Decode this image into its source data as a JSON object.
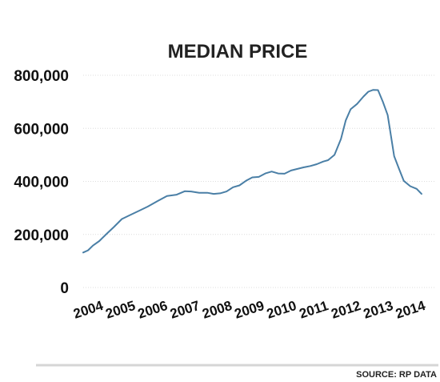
{
  "source": "SOURCE: RP DATA",
  "chart_data": {
    "type": "line",
    "title": "MEDIAN PRICE",
    "xlabel": "",
    "ylabel": "",
    "xlim": [
      2004,
      2014.9
    ],
    "ylim": [
      0,
      800000
    ],
    "y_ticks": [
      0,
      200000,
      400000,
      600000,
      800000
    ],
    "y_tick_labels": [
      "0",
      "200,000",
      "400,000",
      "600,000",
      "800,000"
    ],
    "x_ticks": [
      2004,
      2005,
      2006,
      2007,
      2008,
      2009,
      2010,
      2011,
      2012,
      2013,
      2014
    ],
    "x_tick_labels": [
      "2004",
      "2005",
      "2006",
      "2007",
      "2008",
      "2009",
      "2010",
      "2011",
      "2012",
      "2013",
      "2014"
    ],
    "grid": "horizontal",
    "line_color": "#4a7fa6",
    "series": [
      {
        "name": "",
        "x": [
          2004.0,
          2004.15,
          2004.3,
          2004.5,
          2004.75,
          2004.95,
          2005.2,
          2005.45,
          2005.75,
          2006.0,
          2006.3,
          2006.6,
          2006.9,
          2007.15,
          2007.35,
          2007.6,
          2007.85,
          2008.05,
          2008.25,
          2008.45,
          2008.65,
          2008.85,
          2009.05,
          2009.25,
          2009.45,
          2009.65,
          2009.85,
          2010.05,
          2010.25,
          2010.45,
          2010.65,
          2010.85,
          2011.05,
          2011.25,
          2011.45,
          2011.6,
          2011.8,
          2012.0,
          2012.15,
          2012.3,
          2012.5,
          2012.7,
          2012.85,
          2013.0,
          2013.15,
          2013.3,
          2013.45,
          2013.65,
          2013.8,
          2013.95,
          2014.15,
          2014.35,
          2014.5
        ],
        "y": [
          132000,
          140000,
          158000,
          175000,
          205000,
          228000,
          258000,
          273000,
          290000,
          305000,
          325000,
          345000,
          350000,
          363000,
          362000,
          357000,
          357000,
          353000,
          355000,
          362000,
          378000,
          385000,
          402000,
          415000,
          417000,
          430000,
          437000,
          430000,
          429000,
          441000,
          447000,
          453000,
          458000,
          465000,
          475000,
          480000,
          500000,
          560000,
          630000,
          672000,
          692000,
          720000,
          738000,
          745000,
          744000,
          700000,
          650000,
          495000,
          448000,
          402000,
          382000,
          372000,
          353000
        ]
      }
    ]
  }
}
